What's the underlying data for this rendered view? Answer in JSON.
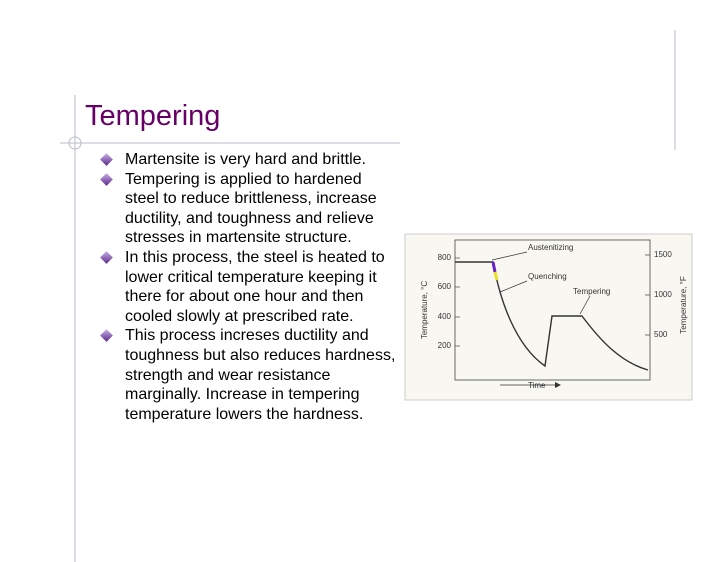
{
  "slide": {
    "title": "Tempering",
    "bullets": [
      "Martensite is very hard and brittle.",
      "Tempering is applied to hardened steel to reduce brittleness, increase ductility, and toughness and relieve stresses in martensite structure.",
      "In this process, the steel is heated to lower critical temperature keeping it there for about one hour and then cooled slowly at prescribed rate.",
      "This process increses ductility and toughness but also reduces hardness, strength and wear resistance marginally. Increase in tempering temperature lowers the hardness."
    ],
    "figure": {
      "y_label": "Temperature, °C",
      "y2_label": "Temperature, °F",
      "x_label": "Time",
      "yticks": [
        800,
        600,
        400,
        200
      ],
      "y2ticks": [
        1500,
        1000,
        500
      ],
      "annotations": [
        "Austenitizing",
        "Quenching",
        "Tempering"
      ]
    }
  }
}
